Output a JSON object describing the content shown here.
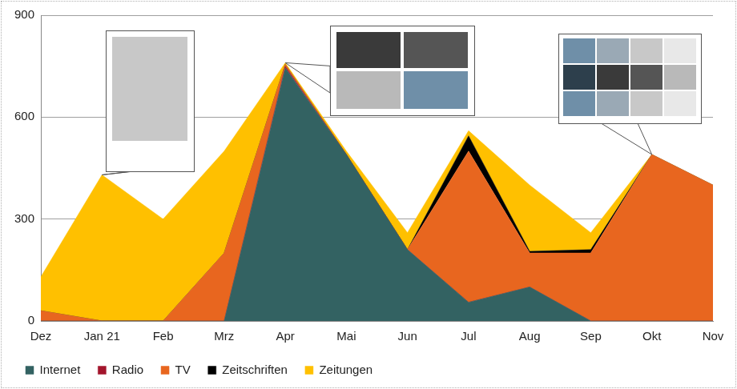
{
  "chart_data": {
    "type": "area",
    "stacked": true,
    "categories": [
      "Dez",
      "Jan 21",
      "Feb",
      "Mrz",
      "Apr",
      "Mai",
      "Jun",
      "Jul",
      "Aug",
      "Sep",
      "Okt",
      "Nov"
    ],
    "series": [
      {
        "name": "Internet",
        "color": "#336262",
        "values": [
          0,
          0,
          0,
          0,
          745,
          490,
          210,
          55,
          100,
          0,
          0,
          0
        ]
      },
      {
        "name": "Radio",
        "color": "#a3152c",
        "values": [
          0,
          0,
          0,
          0,
          5,
          0,
          0,
          0,
          0,
          0,
          0,
          0
        ]
      },
      {
        "name": "TV",
        "color": "#e8661f",
        "values": [
          30,
          0,
          0,
          200,
          5,
          0,
          0,
          445,
          100,
          200,
          490,
          400
        ]
      },
      {
        "name": "Zeitschriften",
        "color": "#000000",
        "values": [
          0,
          0,
          0,
          0,
          0,
          0,
          0,
          45,
          5,
          10,
          0,
          0
        ]
      },
      {
        "name": "Zeitungen",
        "color": "#ffc000",
        "values": [
          100,
          430,
          300,
          300,
          5,
          10,
          50,
          15,
          195,
          50,
          0,
          0
        ]
      }
    ],
    "ylim": [
      0,
      900
    ],
    "yticks": [
      0,
      300,
      600,
      900
    ],
    "grid": true,
    "legend": "bottom"
  }
}
